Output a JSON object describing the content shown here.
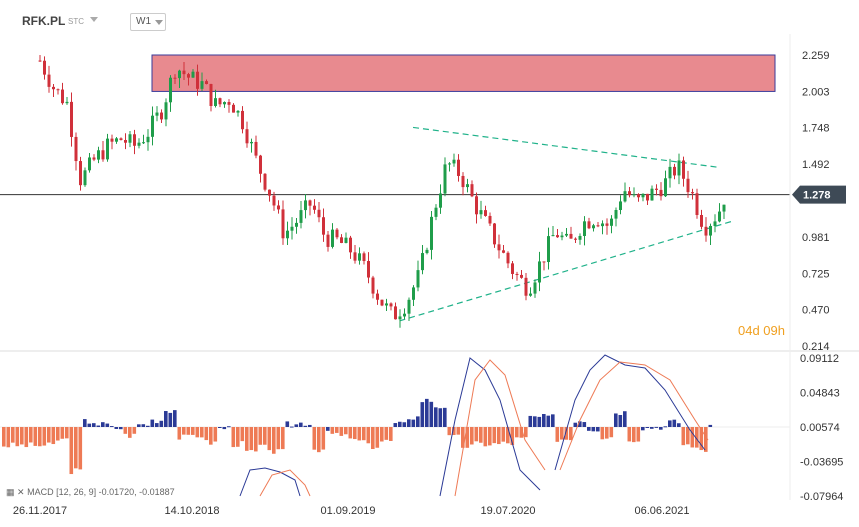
{
  "header": {
    "symbol": "RFK.PL",
    "source": "STC",
    "timeframe": "W1"
  },
  "current_price": "1.278",
  "timer": "04d 09h",
  "macd_legend": "MACD [12, 26, 9] -0.01720, -0.01887",
  "colors": {
    "bull": "#1f9d4a",
    "bear": "#d0303a",
    "macd_pos": "#2b3a96",
    "macd_neg": "#ee7a55",
    "resistance_zone": "#e88a8f",
    "triangle": "#20b28a",
    "price_badge": "#3e4a56"
  },
  "price_axis": [
    "2.259",
    "2.003",
    "1.748",
    "1.492",
    "1.278",
    "0.981",
    "0.725",
    "0.470",
    "0.214"
  ],
  "macd_axis": [
    "0.09112",
    "0.04843",
    "0.00574",
    "-0.03695",
    "-0.07964"
  ],
  "date_axis": [
    "26.11.2017",
    "14.10.2018",
    "01.09.2019",
    "19.07.2020",
    "06.06.2021"
  ],
  "chart_data": {
    "type": "candlestick",
    "price_ylim": [
      0.214,
      2.259
    ],
    "resistance_zone": [
      2.003,
      2.259
    ],
    "current_level": 1.278,
    "triangle_upper": [
      {
        "x": "2020-01-05",
        "y": 1.75
      },
      {
        "x": "2021-09-26",
        "y": 1.47
      }
    ],
    "triangle_lower": [
      {
        "x": "2019-12-08",
        "y": 0.39
      },
      {
        "x": "2021-10-24",
        "y": 1.09
      }
    ],
    "close_path": [
      {
        "x": "2017-11-26",
        "y": 2.22
      },
      {
        "x": "2017-12-24",
        "y": 2.03
      },
      {
        "x": "2018-01-21",
        "y": 1.92
      },
      {
        "x": "2018-02-18",
        "y": 1.38
      },
      {
        "x": "2018-03-18",
        "y": 1.52
      },
      {
        "x": "2018-04-15",
        "y": 1.62
      },
      {
        "x": "2018-05-13",
        "y": 1.67
      },
      {
        "x": "2018-06-10",
        "y": 1.62
      },
      {
        "x": "2018-07-08",
        "y": 1.72
      },
      {
        "x": "2018-08-05",
        "y": 1.88
      },
      {
        "x": "2018-09-02",
        "y": 2.18
      },
      {
        "x": "2018-09-30",
        "y": 2.1
      },
      {
        "x": "2018-10-28",
        "y": 2.05
      },
      {
        "x": "2018-11-25",
        "y": 1.9
      },
      {
        "x": "2018-12-23",
        "y": 1.95
      },
      {
        "x": "2019-01-20",
        "y": 1.78
      },
      {
        "x": "2019-02-17",
        "y": 1.5
      },
      {
        "x": "2019-03-17",
        "y": 1.28
      },
      {
        "x": "2019-04-14",
        "y": 1.0
      },
      {
        "x": "2019-05-12",
        "y": 1.1
      },
      {
        "x": "2019-06-09",
        "y": 1.22
      },
      {
        "x": "2019-07-07",
        "y": 0.98
      },
      {
        "x": "2019-08-04",
        "y": 0.95
      },
      {
        "x": "2019-09-01",
        "y": 0.88
      },
      {
        "x": "2019-09-29",
        "y": 0.75
      },
      {
        "x": "2019-10-27",
        "y": 0.55
      },
      {
        "x": "2019-11-24",
        "y": 0.42
      },
      {
        "x": "2019-12-22",
        "y": 0.52
      },
      {
        "x": "2020-01-19",
        "y": 0.72
      },
      {
        "x": "2020-02-16",
        "y": 1.15
      },
      {
        "x": "2020-03-15",
        "y": 1.5
      },
      {
        "x": "2020-04-12",
        "y": 1.42
      },
      {
        "x": "2020-05-10",
        "y": 1.22
      },
      {
        "x": "2020-06-07",
        "y": 1.05
      },
      {
        "x": "2020-07-05",
        "y": 0.88
      },
      {
        "x": "2020-08-02",
        "y": 0.72
      },
      {
        "x": "2020-08-30",
        "y": 0.62
      },
      {
        "x": "2020-09-27",
        "y": 0.82
      },
      {
        "x": "2020-10-25",
        "y": 1.02
      },
      {
        "x": "2020-11-22",
        "y": 0.92
      },
      {
        "x": "2020-12-20",
        "y": 1.08
      },
      {
        "x": "2021-01-17",
        "y": 1.12
      },
      {
        "x": "2021-02-14",
        "y": 1.05
      },
      {
        "x": "2021-03-14",
        "y": 1.32
      },
      {
        "x": "2021-04-11",
        "y": 1.22
      },
      {
        "x": "2021-05-09",
        "y": 1.28
      },
      {
        "x": "2021-06-06",
        "y": 1.35
      },
      {
        "x": "2021-07-04",
        "y": 1.48
      },
      {
        "x": "2021-08-01",
        "y": 1.3
      },
      {
        "x": "2021-08-29",
        "y": 1.05
      },
      {
        "x": "2021-09-26",
        "y": 1.15
      },
      {
        "x": "2021-10-10",
        "y": 1.278
      }
    ],
    "macd_ylim": [
      -0.07964,
      0.09112
    ]
  }
}
